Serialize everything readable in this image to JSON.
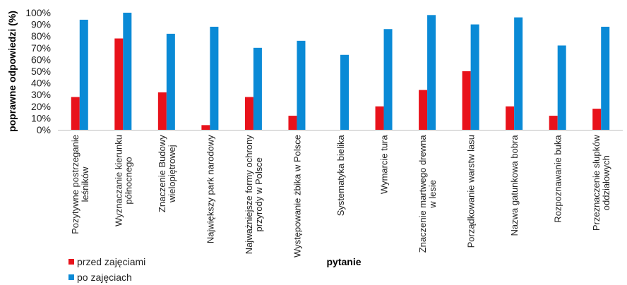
{
  "chart_data": {
    "type": "bar",
    "xlabel": "pytanie",
    "ylabel": "poprawne odpowiedzi (%)",
    "ylim": [
      0,
      100
    ],
    "yticks": [
      "0%",
      "10%",
      "20%",
      "30%",
      "40%",
      "50%",
      "60%",
      "70%",
      "80%",
      "90%",
      "100%"
    ],
    "grid": false,
    "legend_position": "bottom-left",
    "categories": [
      [
        "Pozytywne postrzeganie",
        "leśników"
      ],
      [
        "Wyznaczanie kierunku",
        "północnego"
      ],
      [
        "Znaczenie Budowy",
        "wielopiętrowej"
      ],
      [
        "Największy park narodowy"
      ],
      [
        "Najważniejsze formy ochrony",
        "przyrody w Polsce"
      ],
      [
        "Występowanie żbika w Polsce"
      ],
      [
        "Systematyka bielika"
      ],
      [
        "Wymarcie tura"
      ],
      [
        "Znaczenie martwego drewna",
        "w lesie"
      ],
      [
        "Porządkowanie warstw lasu"
      ],
      [
        "Nazwa gatunkowa bobra"
      ],
      [
        "Rozpoznawanie buka"
      ],
      [
        "Przeznaczenie słupków",
        "oddziałowych"
      ]
    ],
    "series": [
      {
        "name": "przed zajęciami",
        "color": "#e8121b",
        "values": [
          28,
          78,
          32,
          4,
          28,
          12,
          0,
          20,
          34,
          50,
          20,
          12,
          18
        ]
      },
      {
        "name": "po zajęciach",
        "color": "#0a8ad6",
        "values": [
          94,
          100,
          82,
          88,
          70,
          76,
          64,
          86,
          98,
          90,
          96,
          72,
          88
        ]
      }
    ]
  }
}
